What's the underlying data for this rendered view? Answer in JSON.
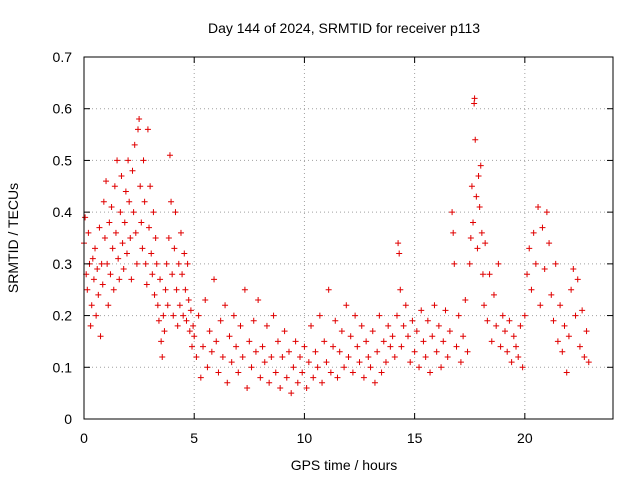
{
  "chart_data": {
    "type": "scatter",
    "title": "Day 144 of 2024, SRMTID for receiver p113",
    "xlabel": "GPS time / hours",
    "ylabel": "SRMTID / TECUs",
    "xlim": [
      0,
      24
    ],
    "ylim": [
      0,
      0.7
    ],
    "x_ticks": [
      0,
      5,
      10,
      15,
      20
    ],
    "x_tick_labels": [
      "0",
      "5",
      "10",
      "15",
      "20"
    ],
    "y_ticks": [
      0,
      0.1,
      0.2,
      0.3,
      0.4,
      0.5,
      0.6,
      0.7
    ],
    "y_tick_labels": [
      "0",
      "0.1",
      "0.2",
      "0.3",
      "0.4",
      "0.5",
      "0.6",
      "0.7"
    ],
    "grid": true,
    "marker": "+",
    "series": [
      {
        "name": "SRMTID",
        "color": "#e00000",
        "points": [
          [
            0.0,
            0.34
          ],
          [
            0.05,
            0.39
          ],
          [
            0.1,
            0.28
          ],
          [
            0.15,
            0.25
          ],
          [
            0.2,
            0.36
          ],
          [
            0.25,
            0.3
          ],
          [
            0.3,
            0.18
          ],
          [
            0.35,
            0.22
          ],
          [
            0.4,
            0.31
          ],
          [
            0.45,
            0.27
          ],
          [
            0.5,
            0.33
          ],
          [
            0.55,
            0.2
          ],
          [
            0.6,
            0.29
          ],
          [
            0.65,
            0.24
          ],
          [
            0.7,
            0.37
          ],
          [
            0.75,
            0.16
          ],
          [
            0.8,
            0.3
          ],
          [
            0.85,
            0.26
          ],
          [
            0.9,
            0.42
          ],
          [
            0.95,
            0.35
          ],
          [
            1.0,
            0.46
          ],
          [
            1.05,
            0.3
          ],
          [
            1.1,
            0.22
          ],
          [
            1.15,
            0.38
          ],
          [
            1.2,
            0.28
          ],
          [
            1.25,
            0.41
          ],
          [
            1.3,
            0.33
          ],
          [
            1.35,
            0.25
          ],
          [
            1.4,
            0.45
          ],
          [
            1.45,
            0.36
          ],
          [
            1.5,
            0.5
          ],
          [
            1.55,
            0.31
          ],
          [
            1.6,
            0.27
          ],
          [
            1.65,
            0.4
          ],
          [
            1.7,
            0.47
          ],
          [
            1.75,
            0.34
          ],
          [
            1.8,
            0.29
          ],
          [
            1.85,
            0.38
          ],
          [
            1.9,
            0.44
          ],
          [
            1.95,
            0.32
          ],
          [
            2.0,
            0.5
          ],
          [
            2.05,
            0.42
          ],
          [
            2.1,
            0.35
          ],
          [
            2.15,
            0.27
          ],
          [
            2.2,
            0.48
          ],
          [
            2.25,
            0.4
          ],
          [
            2.3,
            0.53
          ],
          [
            2.35,
            0.36
          ],
          [
            2.4,
            0.3
          ],
          [
            2.45,
            0.56
          ],
          [
            2.5,
            0.58
          ],
          [
            2.55,
            0.45
          ],
          [
            2.6,
            0.38
          ],
          [
            2.65,
            0.33
          ],
          [
            2.7,
            0.5
          ],
          [
            2.75,
            0.42
          ],
          [
            2.8,
            0.3
          ],
          [
            2.85,
            0.26
          ],
          [
            2.9,
            0.56
          ],
          [
            2.95,
            0.37
          ],
          [
            3.0,
            0.45
          ],
          [
            3.05,
            0.32
          ],
          [
            3.1,
            0.28
          ],
          [
            3.15,
            0.4
          ],
          [
            3.2,
            0.24
          ],
          [
            3.25,
            0.35
          ],
          [
            3.3,
            0.3
          ],
          [
            3.35,
            0.22
          ],
          [
            3.4,
            0.19
          ],
          [
            3.45,
            0.27
          ],
          [
            3.5,
            0.15
          ],
          [
            3.55,
            0.12
          ],
          [
            3.6,
            0.2
          ],
          [
            3.65,
            0.17
          ],
          [
            3.7,
            0.25
          ],
          [
            3.75,
            0.3
          ],
          [
            3.8,
            0.22
          ],
          [
            3.85,
            0.35
          ],
          [
            3.9,
            0.51
          ],
          [
            3.95,
            0.42
          ],
          [
            4.0,
            0.28
          ],
          [
            4.05,
            0.2
          ],
          [
            4.1,
            0.33
          ],
          [
            4.15,
            0.4
          ],
          [
            4.2,
            0.25
          ],
          [
            4.25,
            0.18
          ],
          [
            4.3,
            0.3
          ],
          [
            4.35,
            0.22
          ],
          [
            4.4,
            0.36
          ],
          [
            4.45,
            0.28
          ],
          [
            4.5,
            0.2
          ],
          [
            4.55,
            0.32
          ],
          [
            4.6,
            0.25
          ],
          [
            4.65,
            0.19
          ],
          [
            4.7,
            0.3
          ],
          [
            4.75,
            0.23
          ],
          [
            4.8,
            0.17
          ],
          [
            4.85,
            0.21
          ],
          [
            4.9,
            0.14
          ],
          [
            4.95,
            0.18
          ],
          [
            5.0,
            0.16
          ],
          [
            5.1,
            0.12
          ],
          [
            5.2,
            0.2
          ],
          [
            5.3,
            0.08
          ],
          [
            5.4,
            0.14
          ],
          [
            5.5,
            0.23
          ],
          [
            5.6,
            0.1
          ],
          [
            5.7,
            0.17
          ],
          [
            5.8,
            0.13
          ],
          [
            5.9,
            0.27
          ],
          [
            6.0,
            0.15
          ],
          [
            6.1,
            0.09
          ],
          [
            6.2,
            0.19
          ],
          [
            6.3,
            0.12
          ],
          [
            6.4,
            0.22
          ],
          [
            6.5,
            0.07
          ],
          [
            6.6,
            0.16
          ],
          [
            6.7,
            0.11
          ],
          [
            6.8,
            0.2
          ],
          [
            6.9,
            0.14
          ],
          [
            7.0,
            0.09
          ],
          [
            7.1,
            0.18
          ],
          [
            7.2,
            0.12
          ],
          [
            7.3,
            0.25
          ],
          [
            7.4,
            0.06
          ],
          [
            7.5,
            0.15
          ],
          [
            7.6,
            0.1
          ],
          [
            7.7,
            0.19
          ],
          [
            7.8,
            0.13
          ],
          [
            7.9,
            0.23
          ],
          [
            8.0,
            0.08
          ],
          [
            8.1,
            0.14
          ],
          [
            8.2,
            0.11
          ],
          [
            8.3,
            0.18
          ],
          [
            8.4,
            0.07
          ],
          [
            8.5,
            0.12
          ],
          [
            8.6,
            0.2
          ],
          [
            8.7,
            0.09
          ],
          [
            8.8,
            0.15
          ],
          [
            8.9,
            0.06
          ],
          [
            9.0,
            0.12
          ],
          [
            9.1,
            0.17
          ],
          [
            9.2,
            0.08
          ],
          [
            9.3,
            0.13
          ],
          [
            9.4,
            0.05
          ],
          [
            9.5,
            0.1
          ],
          [
            9.6,
            0.15
          ],
          [
            9.7,
            0.07
          ],
          [
            9.8,
            0.12
          ],
          [
            9.9,
            0.09
          ],
          [
            10.0,
            0.14
          ],
          [
            10.1,
            0.06
          ],
          [
            10.2,
            0.11
          ],
          [
            10.3,
            0.18
          ],
          [
            10.4,
            0.08
          ],
          [
            10.5,
            0.13
          ],
          [
            10.6,
            0.1
          ],
          [
            10.7,
            0.2
          ],
          [
            10.8,
            0.07
          ],
          [
            10.9,
            0.15
          ],
          [
            11.0,
            0.11
          ],
          [
            11.1,
            0.25
          ],
          [
            11.2,
            0.09
          ],
          [
            11.3,
            0.14
          ],
          [
            11.4,
            0.19
          ],
          [
            11.5,
            0.08
          ],
          [
            11.6,
            0.13
          ],
          [
            11.7,
            0.17
          ],
          [
            11.8,
            0.1
          ],
          [
            11.9,
            0.22
          ],
          [
            12.0,
            0.12
          ],
          [
            12.1,
            0.16
          ],
          [
            12.2,
            0.09
          ],
          [
            12.3,
            0.2
          ],
          [
            12.4,
            0.14
          ],
          [
            12.5,
            0.11
          ],
          [
            12.6,
            0.18
          ],
          [
            12.7,
            0.08
          ],
          [
            12.8,
            0.15
          ],
          [
            12.9,
            0.12
          ],
          [
            13.0,
            0.1
          ],
          [
            13.1,
            0.17
          ],
          [
            13.2,
            0.07
          ],
          [
            13.3,
            0.13
          ],
          [
            13.4,
            0.2
          ],
          [
            13.5,
            0.09
          ],
          [
            13.6,
            0.15
          ],
          [
            13.7,
            0.11
          ],
          [
            13.8,
            0.18
          ],
          [
            13.9,
            0.14
          ],
          [
            14.0,
            0.16
          ],
          [
            14.1,
            0.12
          ],
          [
            14.2,
            0.2
          ],
          [
            14.25,
            0.34
          ],
          [
            14.3,
            0.32
          ],
          [
            14.35,
            0.25
          ],
          [
            14.4,
            0.14
          ],
          [
            14.5,
            0.18
          ],
          [
            14.6,
            0.22
          ],
          [
            14.7,
            0.16
          ],
          [
            14.8,
            0.11
          ],
          [
            14.9,
            0.19
          ],
          [
            15.0,
            0.13
          ],
          [
            15.1,
            0.17
          ],
          [
            15.2,
            0.1
          ],
          [
            15.3,
            0.21
          ],
          [
            15.4,
            0.15
          ],
          [
            15.5,
            0.12
          ],
          [
            15.6,
            0.19
          ],
          [
            15.7,
            0.09
          ],
          [
            15.8,
            0.16
          ],
          [
            15.9,
            0.22
          ],
          [
            16.0,
            0.13
          ],
          [
            16.1,
            0.18
          ],
          [
            16.2,
            0.1
          ],
          [
            16.3,
            0.15
          ],
          [
            16.4,
            0.21
          ],
          [
            16.5,
            0.12
          ],
          [
            16.6,
            0.17
          ],
          [
            16.7,
            0.4
          ],
          [
            16.75,
            0.36
          ],
          [
            16.8,
            0.3
          ],
          [
            16.9,
            0.14
          ],
          [
            17.0,
            0.2
          ],
          [
            17.1,
            0.11
          ],
          [
            17.2,
            0.16
          ],
          [
            17.3,
            0.23
          ],
          [
            17.4,
            0.13
          ],
          [
            17.5,
            0.3
          ],
          [
            17.55,
            0.35
          ],
          [
            17.6,
            0.45
          ],
          [
            17.65,
            0.38
          ],
          [
            17.7,
            0.61
          ],
          [
            17.72,
            0.62
          ],
          [
            17.75,
            0.54
          ],
          [
            17.8,
            0.43
          ],
          [
            17.85,
            0.33
          ],
          [
            17.9,
            0.47
          ],
          [
            17.95,
            0.41
          ],
          [
            18.0,
            0.49
          ],
          [
            18.05,
            0.36
          ],
          [
            18.1,
            0.28
          ],
          [
            18.15,
            0.22
          ],
          [
            18.2,
            0.34
          ],
          [
            18.3,
            0.19
          ],
          [
            18.4,
            0.28
          ],
          [
            18.5,
            0.15
          ],
          [
            18.6,
            0.24
          ],
          [
            18.7,
            0.18
          ],
          [
            18.8,
            0.3
          ],
          [
            18.9,
            0.14
          ],
          [
            19.0,
            0.2
          ],
          [
            19.1,
            0.17
          ],
          [
            19.2,
            0.13
          ],
          [
            19.3,
            0.19
          ],
          [
            19.4,
            0.11
          ],
          [
            19.5,
            0.16
          ],
          [
            19.6,
            0.14
          ],
          [
            19.7,
            0.12
          ],
          [
            19.8,
            0.18
          ],
          [
            19.9,
            0.1
          ],
          [
            20.0,
            0.2
          ],
          [
            20.1,
            0.28
          ],
          [
            20.2,
            0.33
          ],
          [
            20.3,
            0.25
          ],
          [
            20.4,
            0.36
          ],
          [
            20.5,
            0.3
          ],
          [
            20.6,
            0.41
          ],
          [
            20.7,
            0.22
          ],
          [
            20.8,
            0.37
          ],
          [
            20.9,
            0.29
          ],
          [
            21.0,
            0.4
          ],
          [
            21.1,
            0.34
          ],
          [
            21.2,
            0.24
          ],
          [
            21.3,
            0.19
          ],
          [
            21.4,
            0.3
          ],
          [
            21.5,
            0.15
          ],
          [
            21.6,
            0.22
          ],
          [
            21.7,
            0.13
          ],
          [
            21.8,
            0.18
          ],
          [
            21.9,
            0.09
          ],
          [
            22.0,
            0.16
          ],
          [
            22.1,
            0.25
          ],
          [
            22.2,
            0.29
          ],
          [
            22.3,
            0.2
          ],
          [
            22.4,
            0.27
          ],
          [
            22.5,
            0.14
          ],
          [
            22.6,
            0.21
          ],
          [
            22.7,
            0.12
          ],
          [
            22.8,
            0.17
          ],
          [
            22.9,
            0.11
          ]
        ]
      }
    ]
  }
}
